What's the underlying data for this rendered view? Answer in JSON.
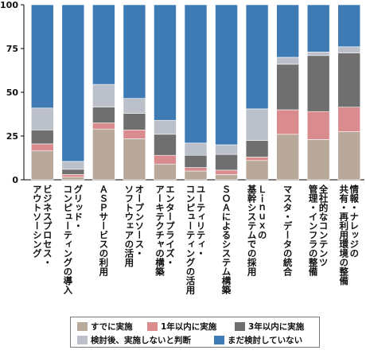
{
  "chart_data": {
    "type": "bar",
    "stacked": true,
    "ylim": [
      0,
      100
    ],
    "yticks": [
      0,
      25,
      50,
      75,
      100
    ],
    "grid": false,
    "categories": [
      "ビジネスプロセス・\nアウトソーシング",
      "グリッド・\nコンピューティングの導入",
      "ＡＳＰサービスの利用",
      "オープンソース・\nソフトウェアの活用",
      "エンタープライズ・\nアーキテクチャの構築",
      "ユーティリティ・\nコンピューティングの活用",
      "ＳＯＡによるシステム構築",
      "Ｌｉｎｕｘの\n基幹システムでの採用",
      "マスタ・データの統合",
      "全社的なコンテンツ\n管理・インフラの整備",
      "情報・ナレッジの\n共有・再利用環境の整備"
    ],
    "series": [
      {
        "name": "すでに実施",
        "color": "#b9a99b",
        "values": [
          16.5,
          1.5,
          29,
          23.5,
          9,
          5,
          3,
          11,
          26,
          23,
          27.5
        ]
      },
      {
        "name": "1年以内に実施",
        "color": "#d98b8e",
        "values": [
          4,
          1.5,
          3.5,
          5,
          5,
          2,
          2.5,
          2,
          14,
          16,
          14
        ]
      },
      {
        "name": "3年以内に実施",
        "color": "#6f6f6f",
        "values": [
          8,
          3,
          9,
          9.5,
          12,
          7,
          9,
          9.5,
          26,
          32,
          31
        ]
      },
      {
        "name": "検討後、実施しないと判断",
        "color": "#bcc0cb",
        "values": [
          12.5,
          4.5,
          13,
          8.5,
          8,
          7,
          5.5,
          18,
          4,
          2,
          3.5
        ]
      },
      {
        "name": "まだ検討していない",
        "color": "#3e7bb4",
        "values": [
          59,
          89.5,
          45.5,
          53.5,
          66,
          79,
          80,
          59.5,
          30,
          27,
          24
        ]
      }
    ]
  }
}
